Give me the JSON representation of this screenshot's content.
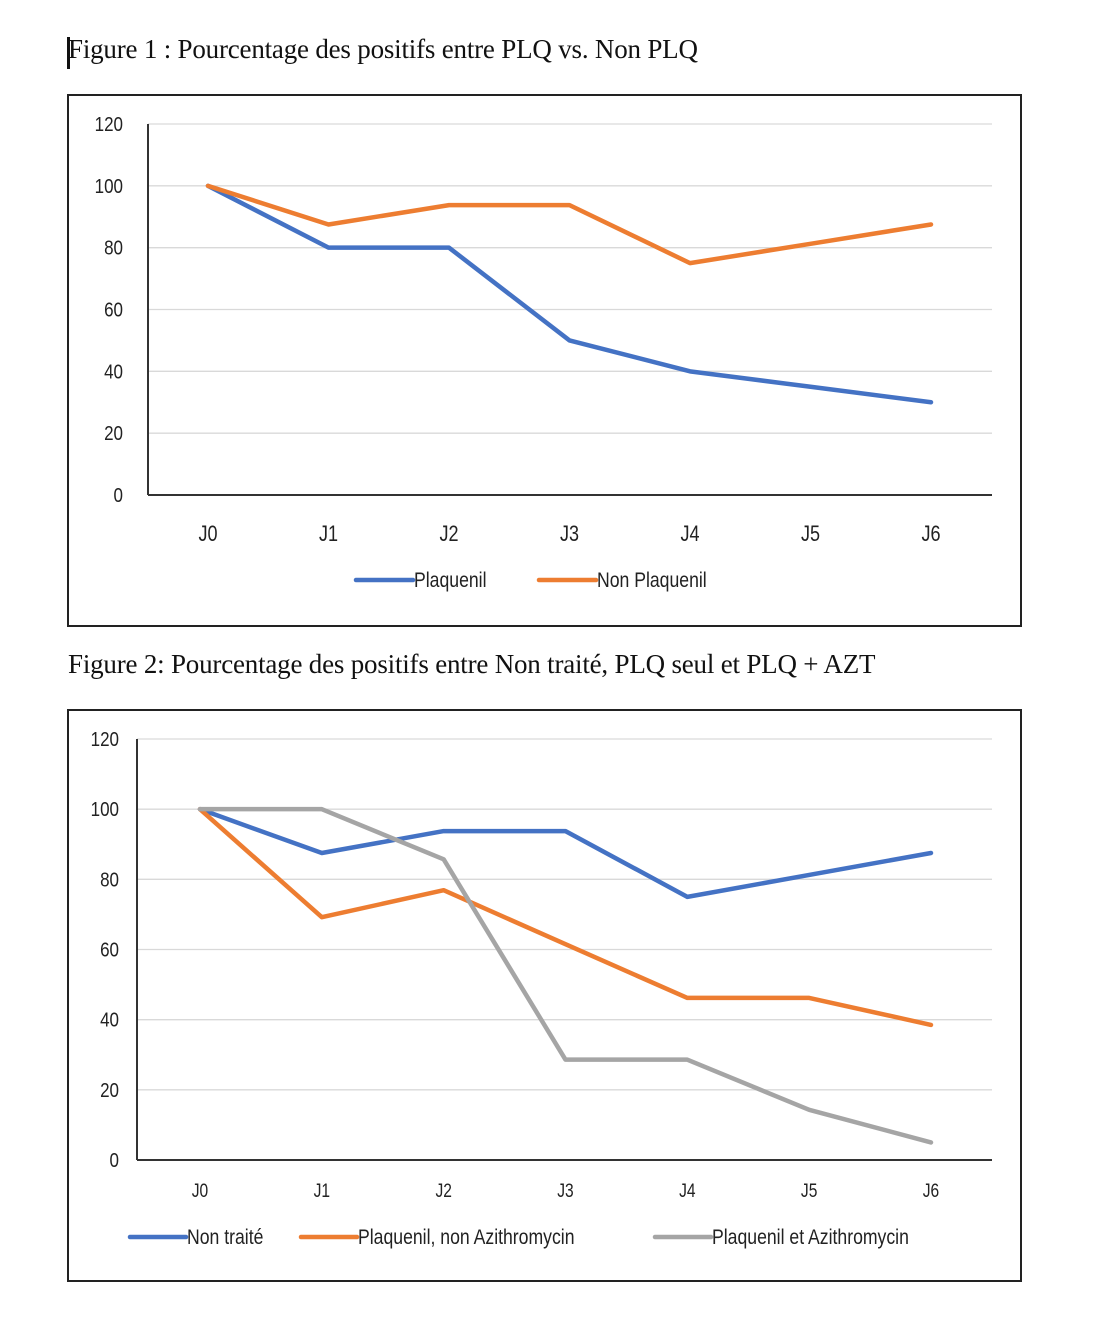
{
  "figures": [
    {
      "caption": "Figure 1 : Pourcentage des positifs entre PLQ vs. Non PLQ"
    },
    {
      "caption": "Figure 2: Pourcentage des positifs entre Non traité, PLQ seul et PLQ + AZT"
    }
  ],
  "chart_data": [
    {
      "type": "line",
      "title": "Figure 1 : Pourcentage des positifs entre PLQ vs. Non PLQ",
      "xlabel": "",
      "ylabel": "",
      "categories": [
        "J0",
        "J1",
        "J2",
        "J3",
        "J4",
        "J5",
        "J6"
      ],
      "ylim": [
        0,
        120
      ],
      "yticks": [
        0,
        20,
        40,
        60,
        80,
        100,
        120
      ],
      "grid": true,
      "legend": "bottom",
      "series": [
        {
          "name": "Plaquenil",
          "color": "#4472C4",
          "values": [
            100,
            80,
            80,
            50,
            40,
            35,
            30
          ]
        },
        {
          "name": "Non Plaquenil",
          "color": "#ED7D31",
          "values": [
            100,
            87.5,
            93.75,
            93.75,
            75,
            81.25,
            87.5
          ]
        }
      ]
    },
    {
      "type": "line",
      "title": "Figure 2: Pourcentage des positifs entre Non traité, PLQ seul et PLQ + AZT",
      "xlabel": "",
      "ylabel": "",
      "categories": [
        "J0",
        "J1",
        "J2",
        "J3",
        "J4",
        "J5",
        "J6"
      ],
      "ylim": [
        0,
        120
      ],
      "yticks": [
        0,
        20,
        40,
        60,
        80,
        100,
        120
      ],
      "grid": true,
      "legend": "bottom",
      "series": [
        {
          "name": "Non traité",
          "color": "#4472C4",
          "values": [
            100,
            87.5,
            93.75,
            93.75,
            75,
            81.25,
            87.5
          ]
        },
        {
          "name": "Plaquenil, non Azithromycin",
          "color": "#ED7D31",
          "values": [
            100,
            69.2,
            76.9,
            61.5,
            46.2,
            46.2,
            38.5
          ]
        },
        {
          "name": "Plaquenil et Azithromycin",
          "color": "#A5A5A5",
          "values": [
            100,
            100,
            85.7,
            28.6,
            28.6,
            14.3,
            5
          ]
        }
      ]
    }
  ]
}
